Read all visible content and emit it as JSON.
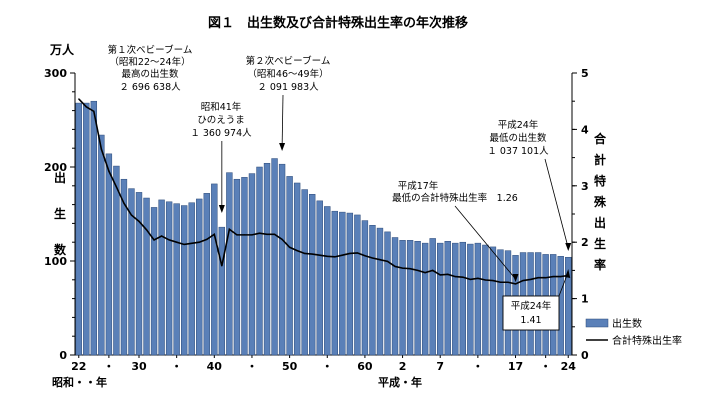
{
  "chart_data": {
    "type": "bar",
    "title": "図１　出生数及び合計特殊出生率の年次推移",
    "left_axis_unit": "万人",
    "left_axis_label_chars": [
      "出",
      "生",
      "数"
    ],
    "right_axis_label_chars": [
      "合",
      "計",
      "特",
      "殊",
      "出",
      "生",
      "率"
    ],
    "ylim_left": [
      0,
      300
    ],
    "ylim_right": [
      0,
      5
    ],
    "left_ticks": [
      "300",
      "200",
      "100",
      "0"
    ],
    "right_ticks": [
      "5",
      "4",
      "3",
      "2",
      "1",
      "0"
    ],
    "x_tick_labels": [
      "22",
      "・",
      "30",
      "・",
      "40",
      "・",
      "50",
      "・",
      "60",
      "2",
      "7",
      "・",
      "17",
      "・",
      "24"
    ],
    "x_era_labels": [
      "昭和・・年",
      "平成・年"
    ],
    "legend_births": "出生数",
    "legend_rate": "合計特殊出生率",
    "categories": [
      "S22",
      "S23",
      "S24",
      "S25",
      "S26",
      "S27",
      "S28",
      "S29",
      "S30",
      "S31",
      "S32",
      "S33",
      "S34",
      "S35",
      "S36",
      "S37",
      "S38",
      "S39",
      "S40",
      "S41",
      "S42",
      "S43",
      "S44",
      "S45",
      "S46",
      "S47",
      "S48",
      "S49",
      "S50",
      "S51",
      "S52",
      "S53",
      "S54",
      "S55",
      "S56",
      "S57",
      "S58",
      "S59",
      "S60",
      "S61",
      "S62",
      "S63",
      "H1",
      "H2",
      "H3",
      "H4",
      "H5",
      "H6",
      "H7",
      "H8",
      "H9",
      "H10",
      "H11",
      "H12",
      "H13",
      "H14",
      "H15",
      "H16",
      "H17",
      "H18",
      "H19",
      "H20",
      "H21",
      "H22",
      "H23",
      "H24"
    ],
    "series": [
      {
        "name": "出生数",
        "values": [
          268,
          268,
          270,
          234,
          214,
          201,
          187,
          177,
          173,
          167,
          157,
          165,
          163,
          161,
          159,
          162,
          166,
          172,
          182,
          136,
          194,
          187,
          189,
          193,
          200,
          204,
          209,
          203,
          190,
          183,
          176,
          171,
          164,
          158,
          153,
          152,
          151,
          149,
          143,
          138,
          135,
          131,
          125,
          122,
          122,
          121,
          119,
          124,
          119,
          121,
          119,
          120,
          118,
          119,
          117,
          115,
          112,
          111,
          106,
          109,
          109,
          109,
          107,
          107,
          105,
          104
        ]
      },
      {
        "name": "合計特殊出生率",
        "values": [
          4.54,
          4.4,
          4.32,
          3.65,
          3.26,
          2.98,
          2.69,
          2.48,
          2.37,
          2.22,
          2.04,
          2.11,
          2.04,
          2.0,
          1.96,
          1.98,
          2.0,
          2.05,
          2.14,
          1.58,
          2.23,
          2.13,
          2.13,
          2.13,
          2.16,
          2.14,
          2.14,
          2.05,
          1.91,
          1.85,
          1.8,
          1.79,
          1.77,
          1.75,
          1.74,
          1.77,
          1.8,
          1.81,
          1.76,
          1.72,
          1.69,
          1.66,
          1.57,
          1.54,
          1.53,
          1.5,
          1.46,
          1.5,
          1.42,
          1.43,
          1.39,
          1.38,
          1.34,
          1.36,
          1.33,
          1.32,
          1.29,
          1.29,
          1.26,
          1.32,
          1.34,
          1.37,
          1.37,
          1.39,
          1.39,
          1.41
        ]
      }
    ],
    "annotations": [
      {
        "index": 2,
        "lines": [
          "第１次ベビーブーム",
          "（昭和22～24年）",
          "最高の出生数",
          "２ 696 638人"
        ]
      },
      {
        "index": 19,
        "lines": [
          "昭和41年",
          "ひのえうま",
          "１ 360 974人"
        ]
      },
      {
        "index": 27,
        "lines": [
          "第２次ベビーブーム",
          "（昭和46～49年）",
          "２ 091 983人"
        ]
      },
      {
        "index": 65,
        "lines": [
          "平成24年",
          "最低の出生数",
          "１ 037 101人"
        ]
      },
      {
        "index": 58,
        "lines": [
          "平成17年",
          "最低の合計特殊出生率　1.26"
        ]
      },
      {
        "index": 65,
        "lines": [
          "平成24年",
          "1.41"
        ]
      }
    ],
    "colors": {
      "bar_fill": "#5a80b8",
      "bar_stroke": "#2c4a78",
      "line": "#000000"
    },
    "grid": false,
    "legend_position": "bottom-right"
  }
}
